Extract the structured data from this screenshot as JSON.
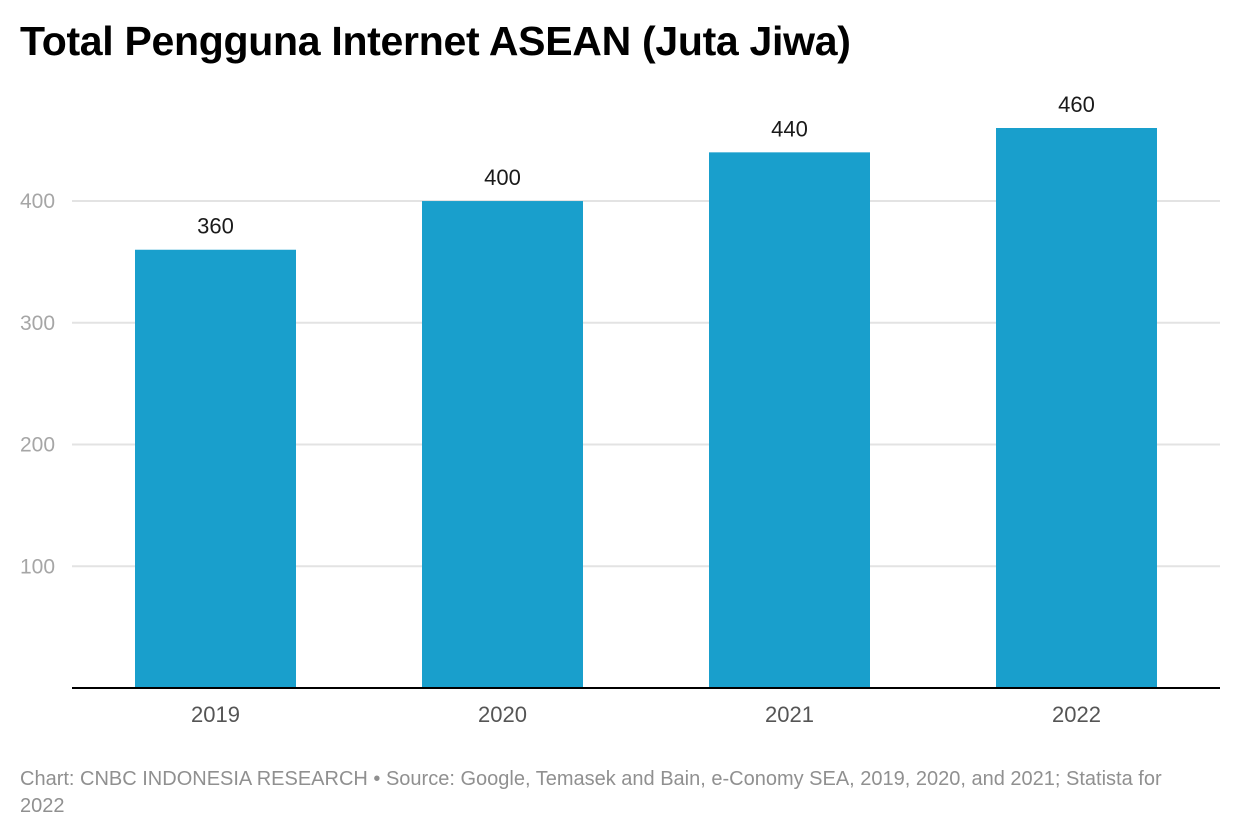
{
  "chart_data": {
    "type": "bar",
    "title": "Total Pengguna Internet ASEAN (Juta Jiwa)",
    "categories": [
      "2019",
      "2020",
      "2021",
      "2022"
    ],
    "values": [
      360,
      400,
      440,
      460
    ],
    "data_labels": [
      "360",
      "400",
      "440",
      "460"
    ],
    "xlabel": "",
    "ylabel": "",
    "ylim": [
      0,
      460
    ],
    "yticks": [
      100,
      200,
      300,
      400
    ],
    "ytick_labels": [
      "100",
      "200",
      "300",
      "400"
    ],
    "grid": true,
    "bar_color": "#199fcc",
    "gridline_color": "#e3e3e3",
    "axis_color": "#000000",
    "tick_label_color": "#a6a6a6",
    "category_label_color": "#555555",
    "data_label_color": "#1a1a1a"
  },
  "caption": "Chart: CNBC INDONESIA RESEARCH • Source: Google, Temasek and Bain, e-Conomy SEA, 2019, 2020, and 2021; Statista for 2022"
}
